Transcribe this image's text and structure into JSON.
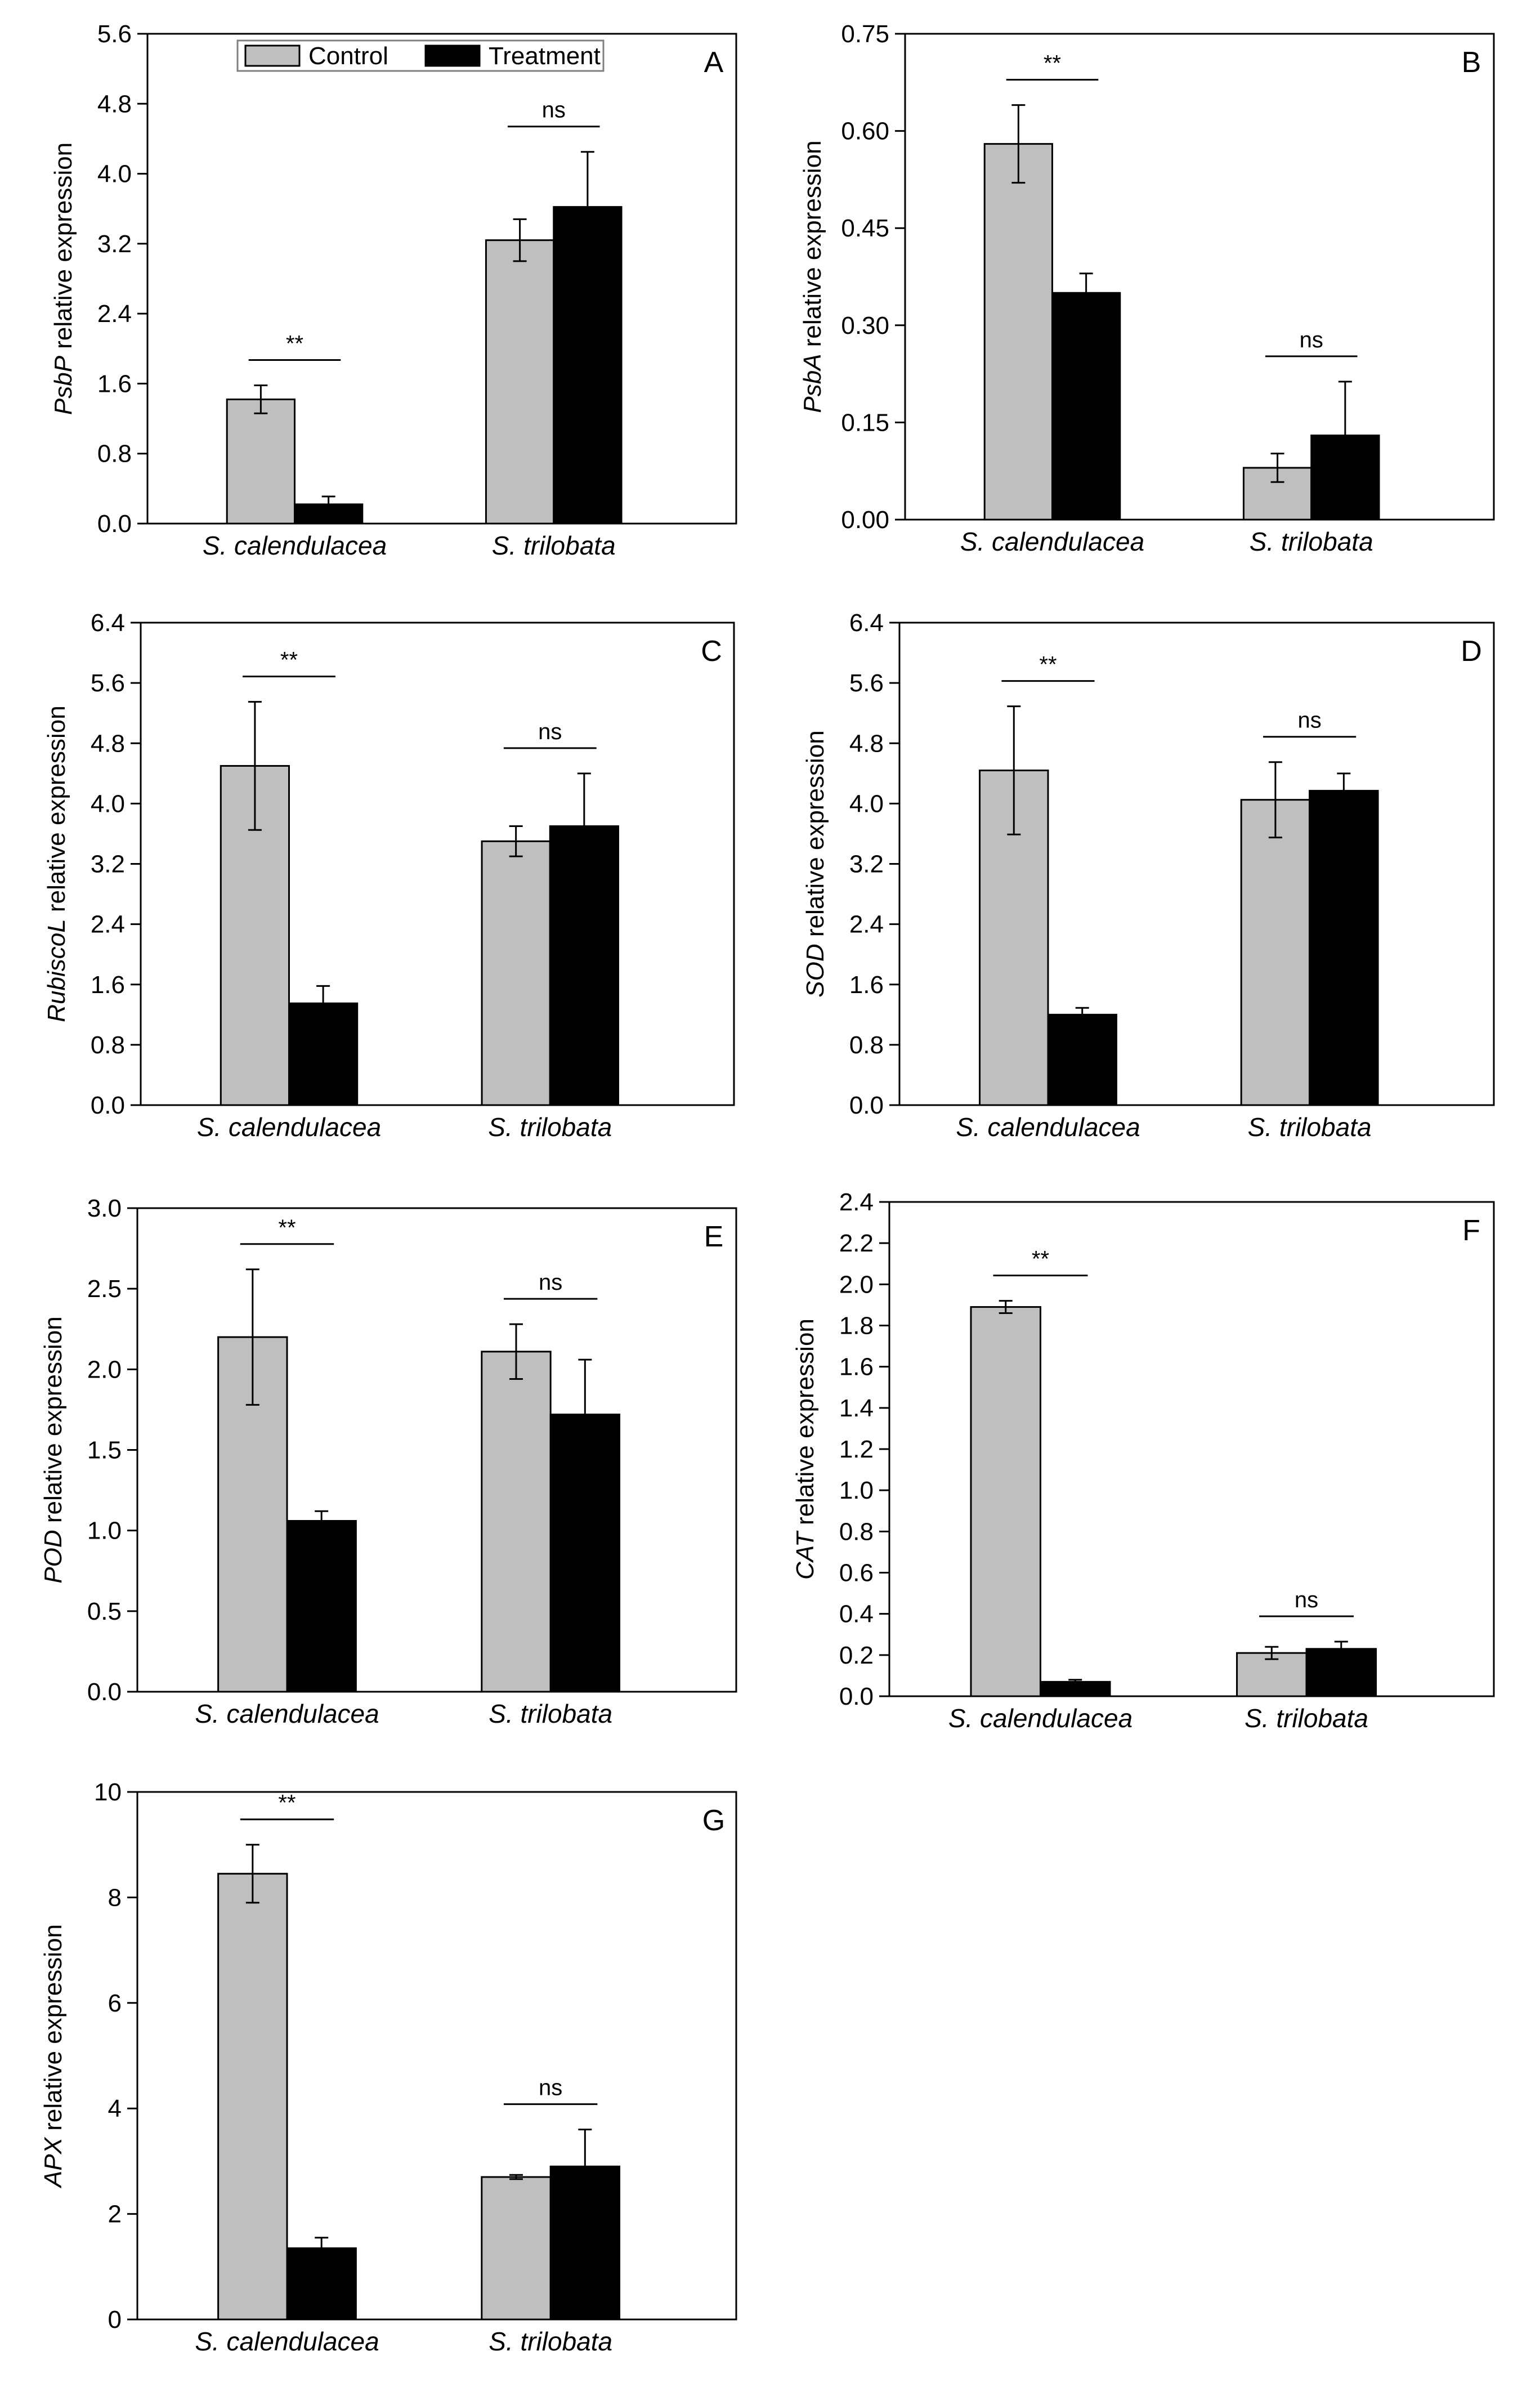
{
  "figure": {
    "legend": [
      {
        "name": "Control",
        "color": "#bfbfbf"
      },
      {
        "name": "Treatment",
        "color": "#000000"
      }
    ],
    "categories": [
      "S. calendulacea",
      "S. trilobata"
    ]
  },
  "chart_data": [
    {
      "type": "bar",
      "panel": "A",
      "gene": "PsbP",
      "ylabel_suffix": " relative expression",
      "categories": [
        "S. calendulacea",
        "S. trilobata"
      ],
      "series": [
        {
          "name": "Control",
          "values": [
            1.42,
            3.24
          ],
          "errors": [
            0.16,
            0.24
          ]
        },
        {
          "name": "Treatment",
          "values": [
            0.22,
            3.62
          ],
          "errors": [
            0.09,
            0.63
          ]
        }
      ],
      "significance": [
        "**",
        "ns"
      ],
      "ylim": [
        0,
        5.6
      ],
      "yticks": [
        "0.0",
        "0.8",
        "1.6",
        "2.4",
        "3.2",
        "4.0",
        "4.8",
        "5.6"
      ],
      "yticks_values": [
        0,
        0.8,
        1.6,
        2.4,
        3.2,
        4.0,
        4.8,
        5.6
      ],
      "legend": true
    },
    {
      "type": "bar",
      "panel": "B",
      "gene": "PsbA",
      "ylabel_suffix": " relative expression",
      "categories": [
        "S. calendulacea",
        "S. trilobata"
      ],
      "series": [
        {
          "name": "Control",
          "values": [
            0.58,
            0.08
          ],
          "errors": [
            0.06,
            0.022
          ]
        },
        {
          "name": "Treatment",
          "values": [
            0.35,
            0.13
          ],
          "errors": [
            0.03,
            0.083
          ]
        }
      ],
      "significance": [
        "**",
        "ns"
      ],
      "ylim": [
        0,
        0.75
      ],
      "yticks": [
        "0.00",
        "0.15",
        "0.30",
        "0.45",
        "0.60",
        "0.75"
      ],
      "yticks_values": [
        0,
        0.15,
        0.3,
        0.45,
        0.6,
        0.75
      ],
      "legend": false
    },
    {
      "type": "bar",
      "panel": "C",
      "gene": "RubiscoL",
      "ylabel_suffix": " relative expression",
      "categories": [
        "S. calendulacea",
        "S. trilobata"
      ],
      "series": [
        {
          "name": "Control",
          "values": [
            4.5,
            3.5
          ],
          "errors": [
            0.85,
            0.2
          ]
        },
        {
          "name": "Treatment",
          "values": [
            1.35,
            3.7
          ],
          "errors": [
            0.23,
            0.7
          ]
        }
      ],
      "significance": [
        "**",
        "ns"
      ],
      "ylim": [
        0,
        6.4
      ],
      "yticks": [
        "0.0",
        "0.8",
        "1.6",
        "2.4",
        "3.2",
        "4.0",
        "4.8",
        "5.6",
        "6.4"
      ],
      "yticks_values": [
        0,
        0.8,
        1.6,
        2.4,
        3.2,
        4.0,
        4.8,
        5.6,
        6.4
      ],
      "legend": false
    },
    {
      "type": "bar",
      "panel": "D",
      "gene": "SOD",
      "ylabel_suffix": " relative expression",
      "categories": [
        "S. calendulacea",
        "S. trilobata"
      ],
      "series": [
        {
          "name": "Control",
          "values": [
            4.44,
            4.05
          ],
          "errors": [
            0.85,
            0.5
          ]
        },
        {
          "name": "Treatment",
          "values": [
            1.2,
            4.17
          ],
          "errors": [
            0.09,
            0.23
          ]
        }
      ],
      "significance": [
        "**",
        "ns"
      ],
      "ylim": [
        0,
        6.4
      ],
      "yticks": [
        "0.0",
        "0.8",
        "1.6",
        "2.4",
        "3.2",
        "4.0",
        "4.8",
        "5.6",
        "6.4"
      ],
      "yticks_values": [
        0,
        0.8,
        1.6,
        2.4,
        3.2,
        4.0,
        4.8,
        5.6,
        6.4
      ],
      "legend": false
    },
    {
      "type": "bar",
      "panel": "E",
      "gene": "POD",
      "ylabel_suffix": " relative expression",
      "categories": [
        "S. calendulacea",
        "S. trilobata"
      ],
      "series": [
        {
          "name": "Control",
          "values": [
            2.2,
            2.11
          ],
          "errors": [
            0.42,
            0.17
          ]
        },
        {
          "name": "Treatment",
          "values": [
            1.06,
            1.72
          ],
          "errors": [
            0.06,
            0.34
          ]
        }
      ],
      "significance": [
        "**",
        "ns"
      ],
      "ylim": [
        0,
        3.0
      ],
      "yticks": [
        "0.0",
        "0.5",
        "1.0",
        "1.5",
        "2.0",
        "2.5",
        "3.0"
      ],
      "yticks_values": [
        0,
        0.5,
        1.0,
        1.5,
        2.0,
        2.5,
        3.0
      ],
      "legend": false
    },
    {
      "type": "bar",
      "panel": "F",
      "gene": "CAT",
      "ylabel_suffix": " relative expression",
      "categories": [
        "S. calendulacea",
        "S. trilobata"
      ],
      "series": [
        {
          "name": "Control",
          "values": [
            1.89,
            0.21
          ],
          "errors": [
            0.03,
            0.03
          ]
        },
        {
          "name": "Treatment",
          "values": [
            0.07,
            0.23
          ],
          "errors": [
            0.01,
            0.035
          ]
        }
      ],
      "significance": [
        "**",
        "ns"
      ],
      "ylim": [
        0,
        2.4
      ],
      "yticks": [
        "0.0",
        "0.2",
        "0.4",
        "0.6",
        "0.8",
        "1.0",
        "1.2",
        "1.4",
        "1.6",
        "1.8",
        "2.0",
        "2.2",
        "2.4"
      ],
      "yticks_values": [
        0,
        0.2,
        0.4,
        0.6,
        0.8,
        1.0,
        1.2,
        1.4,
        1.6,
        1.8,
        2.0,
        2.2,
        2.4
      ],
      "legend": false
    },
    {
      "type": "bar",
      "panel": "G",
      "gene": "APX",
      "ylabel_suffix": " relative expression",
      "categories": [
        "S. calendulacea",
        "S. trilobata"
      ],
      "series": [
        {
          "name": "Control",
          "values": [
            8.45,
            2.7
          ],
          "errors": [
            0.55,
            0.04
          ]
        },
        {
          "name": "Treatment",
          "values": [
            1.35,
            2.9
          ],
          "errors": [
            0.2,
            0.7
          ]
        }
      ],
      "significance": [
        "**",
        "ns"
      ],
      "ylim": [
        0,
        10
      ],
      "yticks": [
        "0",
        "2",
        "4",
        "6",
        "8",
        "10"
      ],
      "yticks_values": [
        0,
        2,
        4,
        6,
        8,
        10
      ],
      "legend": false
    }
  ]
}
